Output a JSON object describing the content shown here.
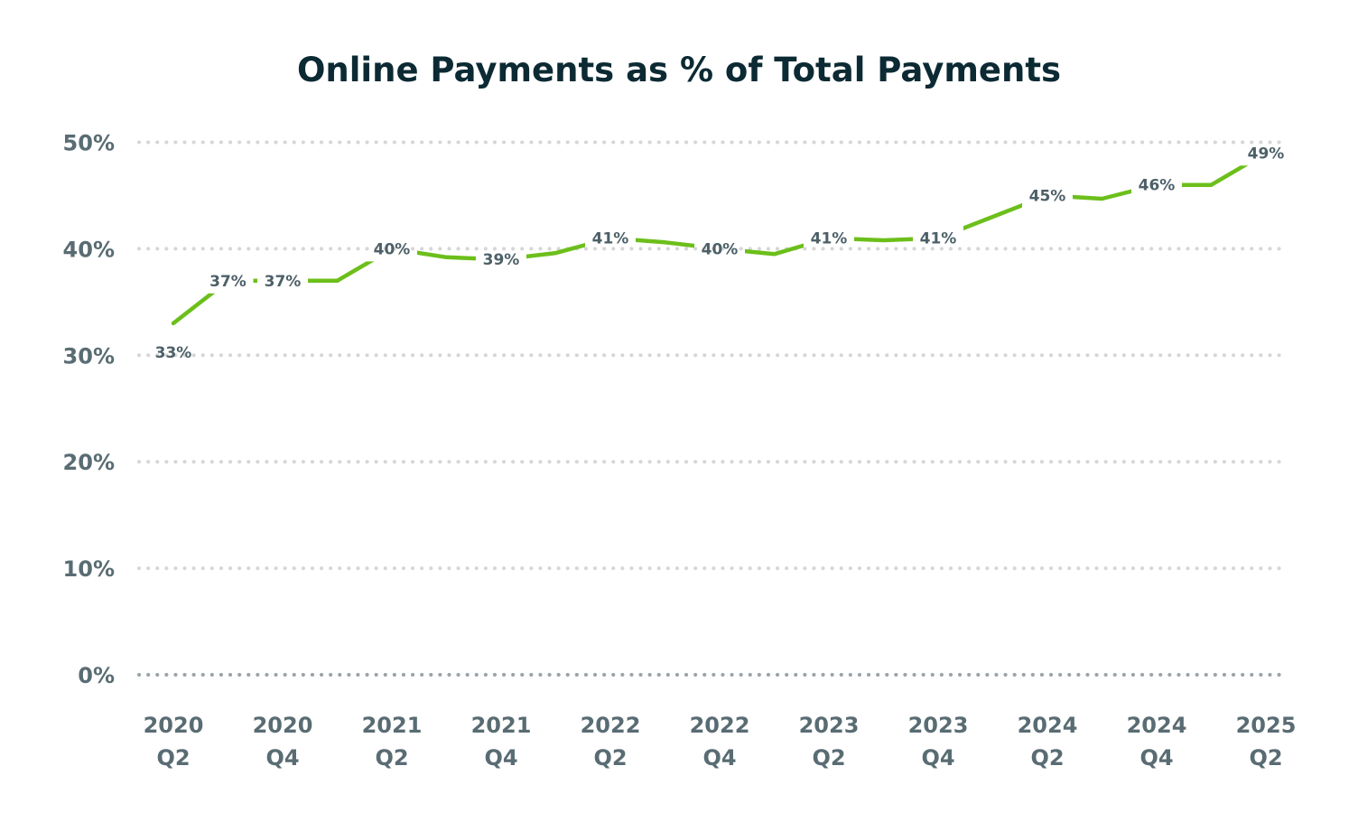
{
  "chart_data": {
    "type": "line",
    "title": "Online Payments as % of Total Payments",
    "xlabel": "",
    "ylabel": "",
    "ylim": [
      0,
      50
    ],
    "yticks": [
      "0%",
      "10%",
      "20%",
      "30%",
      "40%",
      "50%"
    ],
    "y_tick_values": [
      0,
      10,
      20,
      30,
      40,
      50
    ],
    "x": [
      "2020 Q2",
      "2020 Q3",
      "2020 Q4",
      "2021 Q1",
      "2021 Q2",
      "2021 Q3",
      "2021 Q4",
      "2022 Q1",
      "2022 Q2",
      "2022 Q3",
      "2022 Q4",
      "2023 Q1",
      "2023 Q2",
      "2023 Q3",
      "2023 Q4",
      "2024 Q1",
      "2024 Q2",
      "2024 Q3",
      "2024 Q4",
      "2025 Q1",
      "2025 Q2"
    ],
    "xtick_labels": [
      {
        "index": 0,
        "line1": "2020",
        "line2": "Q2"
      },
      {
        "index": 2,
        "line1": "2020",
        "line2": "Q4"
      },
      {
        "index": 4,
        "line1": "2021",
        "line2": "Q2"
      },
      {
        "index": 6,
        "line1": "2021",
        "line2": "Q4"
      },
      {
        "index": 8,
        "line1": "2022",
        "line2": "Q2"
      },
      {
        "index": 10,
        "line1": "2022",
        "line2": "Q4"
      },
      {
        "index": 12,
        "line1": "2023",
        "line2": "Q2"
      },
      {
        "index": 14,
        "line1": "2023",
        "line2": "Q4"
      },
      {
        "index": 16,
        "line1": "2024",
        "line2": "Q2"
      },
      {
        "index": 18,
        "line1": "2024",
        "line2": "Q4"
      },
      {
        "index": 20,
        "line1": "2025",
        "line2": "Q2"
      }
    ],
    "series": [
      {
        "values": [
          33,
          37,
          37,
          37,
          40,
          39.2,
          39,
          39.6,
          41,
          40.6,
          40,
          39.5,
          41,
          40.8,
          41,
          43,
          45,
          44.7,
          46,
          46,
          49
        ],
        "color": "#6cbf1a"
      }
    ],
    "data_labels": [
      {
        "index": 0,
        "text": "33%",
        "position": "below"
      },
      {
        "index": 1,
        "text": "37%",
        "position": "center"
      },
      {
        "index": 2,
        "text": "37%",
        "position": "center"
      },
      {
        "index": 4,
        "text": "40%",
        "position": "center"
      },
      {
        "index": 6,
        "text": "39%",
        "position": "center"
      },
      {
        "index": 8,
        "text": "41%",
        "position": "center"
      },
      {
        "index": 10,
        "text": "40%",
        "position": "center"
      },
      {
        "index": 12,
        "text": "41%",
        "position": "center"
      },
      {
        "index": 14,
        "text": "41%",
        "position": "center"
      },
      {
        "index": 16,
        "text": "45%",
        "position": "center"
      },
      {
        "index": 18,
        "text": "46%",
        "position": "center"
      },
      {
        "index": 20,
        "text": "49%",
        "position": "center"
      }
    ],
    "grid": true,
    "grid_style": "dotted",
    "legend": "none",
    "colors": {
      "line": "#6cbf1a",
      "title": "#0c2a33",
      "tick_text": "#596c73",
      "label_text": "#4d6068",
      "grid": "#d6d6d6",
      "zero_line": "#9aa3a8"
    }
  }
}
